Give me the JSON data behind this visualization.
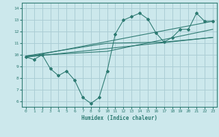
{
  "bg_color": "#cce8ec",
  "grid_color": "#aacdd4",
  "line_color": "#2d7a72",
  "xlabel": "Humidex (Indice chaleur)",
  "xlim": [
    -0.5,
    23.5
  ],
  "ylim": [
    5.5,
    14.5
  ],
  "yticks": [
    6,
    7,
    8,
    9,
    10,
    11,
    12,
    13,
    14
  ],
  "xticks": [
    0,
    1,
    2,
    3,
    4,
    5,
    6,
    7,
    8,
    9,
    10,
    11,
    12,
    13,
    14,
    15,
    16,
    17,
    18,
    19,
    20,
    21,
    22,
    23
  ],
  "main_x": [
    0,
    1,
    2,
    3,
    4,
    5,
    6,
    7,
    8,
    9,
    10,
    11,
    12,
    13,
    14,
    15,
    16,
    17,
    18,
    19,
    20,
    21,
    22,
    23
  ],
  "main_y": [
    9.8,
    9.6,
    10.0,
    8.8,
    8.2,
    8.6,
    7.8,
    6.3,
    5.8,
    6.3,
    8.6,
    11.8,
    13.0,
    13.3,
    13.6,
    13.1,
    11.9,
    11.1,
    11.5,
    12.2,
    12.2,
    13.6,
    12.9,
    12.9
  ],
  "trend_lines": [
    {
      "x": [
        0,
        23
      ],
      "y": [
        9.8,
        12.9
      ]
    },
    {
      "x": [
        0,
        23
      ],
      "y": [
        9.8,
        11.5
      ]
    },
    {
      "x": [
        0,
        10,
        23
      ],
      "y": [
        9.9,
        10.3,
        12.2
      ]
    },
    {
      "x": [
        0,
        10,
        17,
        23
      ],
      "y": [
        9.9,
        11.0,
        11.1,
        11.5
      ]
    }
  ]
}
